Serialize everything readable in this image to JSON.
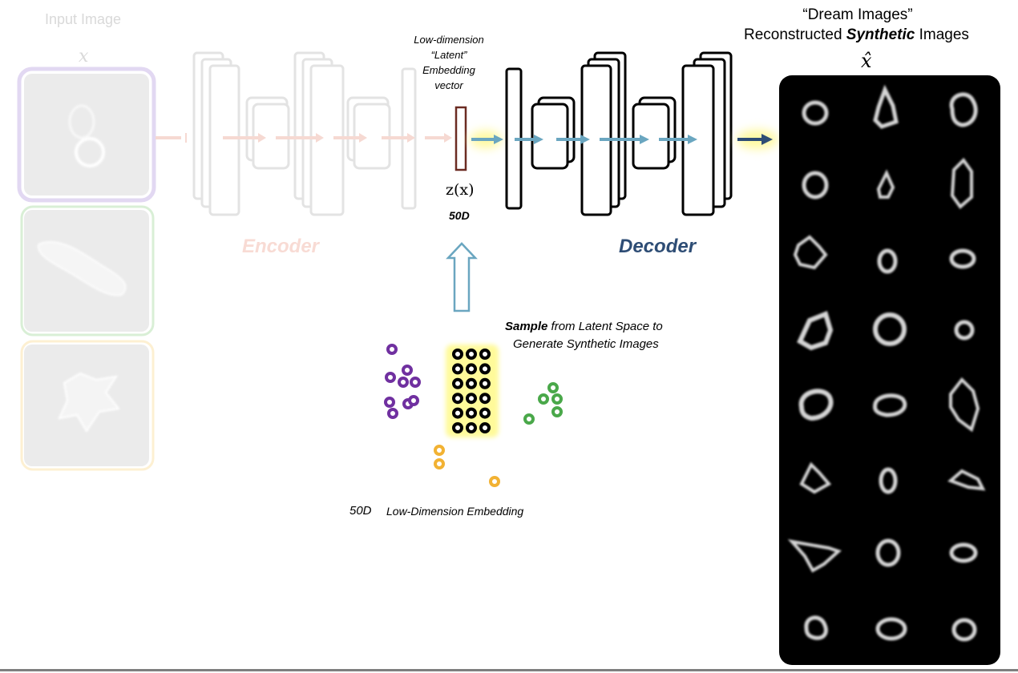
{
  "input": {
    "title": "Input Image",
    "symbol": "x"
  },
  "encoder": {
    "label": "Encoder"
  },
  "latent": {
    "caption_line1": "Low-dimension",
    "caption_line2": "“Latent”",
    "caption_line3": "Embedding",
    "caption_line4": "vector",
    "symbol": "z(x)",
    "dim": "50D"
  },
  "decoder": {
    "label": "Decoder"
  },
  "output": {
    "title_line1": "“Dream Images”",
    "title_prefix": "Reconstructed ",
    "title_emph": "Synthetic",
    "title_suffix": " Images",
    "symbol": "x̂"
  },
  "sampling": {
    "emph": "Sample",
    "line1_rest": " from Latent Space to",
    "line2": "Generate Synthetic Images"
  },
  "embedding": {
    "dim": "50D",
    "label": "Low-Dimension Embedding"
  },
  "colors": {
    "accent_blue": "#6aa6c0",
    "decoder_label": "#2e4d75",
    "latent_bar": "#6b2b22",
    "purple_cluster": "#7030a0",
    "green_cluster": "#4aa84a",
    "gold_cluster": "#f2b233",
    "glow": "#fffa9a",
    "input_purple_border": "#e2d8f2",
    "input_green_border": "#d9efd6",
    "input_gold_border": "#fdf0d2"
  }
}
